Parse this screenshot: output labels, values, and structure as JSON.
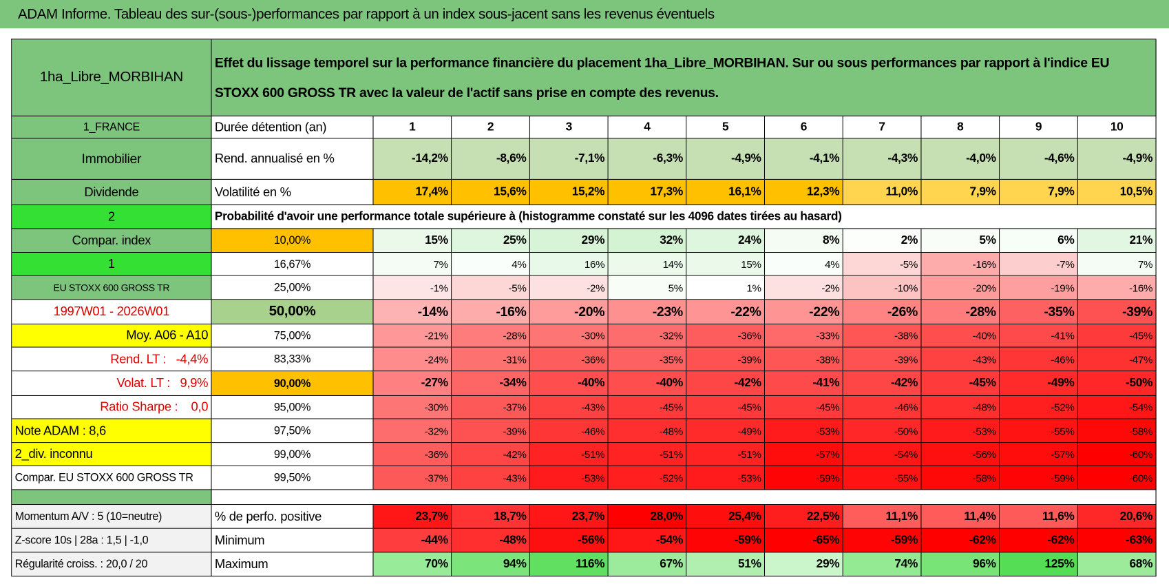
{
  "header": {
    "title": "ADAM Informe. Tableau des sur-(sous-)performances par rapport à un index sous-jacent sans les revenus éventuels"
  },
  "table": {
    "name": "1ha_Libre_MORBIHAN",
    "description": "Effet du lissage temporel sur la performance financière du placement 1ha_Libre_MORBIHAN. Sur ou sous performances par rapport à l'indice EU STOXX 600 GROSS TR avec la valeur de l'actif sans prise en compte des revenus.",
    "rows": [
      [
        "1_FRANCE",
        "Durée détention (an)",
        "1",
        "2",
        "3",
        "4",
        "5",
        "6",
        "7",
        "8",
        "9",
        "10"
      ],
      [
        "Immobilier",
        "Rend. annualisé en %",
        "-14,2%",
        "-8,6%",
        "-7,1%",
        "-6,3%",
        "-4,9%",
        "-4,1%",
        "-4,3%",
        "-4,0%",
        "-4,6%",
        "-4,9%"
      ],
      [
        "Dividende",
        "Volatilité en %",
        "17,4%",
        "15,6%",
        "15,2%",
        "17,3%",
        "16,1%",
        "12,3%",
        "11,0%",
        "7,9%",
        "7,9%",
        "10,5%"
      ],
      [
        "2",
        "Probabilité d'avoir une performance totale supérieure à (histogramme constaté sur les 4096 dates tirées au hasard)"
      ],
      [
        "Compar. index",
        "10,00%",
        "15%",
        "25%",
        "29%",
        "32%",
        "24%",
        "8%",
        "2%",
        "5%",
        "6%",
        "21%"
      ],
      [
        "1",
        "16,67%",
        "7%",
        "4%",
        "16%",
        "14%",
        "15%",
        "4%",
        "-5%",
        "-16%",
        "-7%",
        "7%"
      ],
      [
        "EU STOXX 600 GROSS TR",
        "25,00%",
        "-1%",
        "-5%",
        "-2%",
        "5%",
        "1%",
        "-2%",
        "-10%",
        "-20%",
        "-19%",
        "-16%"
      ],
      [
        "1997W01 - 2026W01",
        "50,00%",
        "-14%",
        "-16%",
        "-20%",
        "-23%",
        "-22%",
        "-22%",
        "-26%",
        "-28%",
        "-35%",
        "-39%"
      ],
      [
        "Moy. A06 - A10",
        "75,00%",
        "-21%",
        "-28%",
        "-30%",
        "-32%",
        "-36%",
        "-33%",
        "-38%",
        "-40%",
        "-41%",
        "-45%"
      ],
      [
        "Rend. LT :   -4,4%",
        "83,33%",
        "-24%",
        "-31%",
        "-36%",
        "-35%",
        "-39%",
        "-38%",
        "-39%",
        "-43%",
        "-46%",
        "-47%"
      ],
      [
        "Volat. LT :   9,9%",
        "90,00%",
        "-27%",
        "-34%",
        "-40%",
        "-40%",
        "-42%",
        "-41%",
        "-42%",
        "-45%",
        "-49%",
        "-50%"
      ],
      [
        "Ratio Sharpe :    0,0",
        "95,00%",
        "-30%",
        "-37%",
        "-43%",
        "-45%",
        "-45%",
        "-45%",
        "-46%",
        "-48%",
        "-52%",
        "-54%"
      ],
      [
        "Note ADAM : 8,6",
        "97,50%",
        "-32%",
        "-39%",
        "-46%",
        "-48%",
        "-49%",
        "-53%",
        "-50%",
        "-53%",
        "-55%",
        "-58%"
      ],
      [
        "2_div. inconnu",
        "99,00%",
        "-36%",
        "-42%",
        "-51%",
        "-51%",
        "-51%",
        "-57%",
        "-54%",
        "-56%",
        "-57%",
        "-60%"
      ],
      [
        "Compar. EU STOXX 600 GROSS TR",
        "99,50%",
        "-37%",
        "-43%",
        "-53%",
        "-52%",
        "-53%",
        "-59%",
        "-55%",
        "-58%",
        "-59%",
        "-60%"
      ],
      [
        "Momentum A/V : 5 (10=neutre)",
        "% de perfo. positive",
        "23,7%",
        "18,7%",
        "23,7%",
        "28,0%",
        "25,4%",
        "22,5%",
        "11,1%",
        "11,4%",
        "11,6%",
        "20,6%"
      ],
      [
        "Z-score 10s | 28a : 1,5 | -1,0",
        "Minimum",
        "-44%",
        "-48%",
        "-56%",
        "-54%",
        "-59%",
        "-65%",
        "-59%",
        "-62%",
        "-62%",
        "-63%"
      ],
      [
        "Régularité croiss. : 20,0 / 20",
        "Maximum",
        "70%",
        "94%",
        "116%",
        "67%",
        "51%",
        "29%",
        "74%",
        "96%",
        "125%",
        "68%"
      ]
    ]
  }
}
